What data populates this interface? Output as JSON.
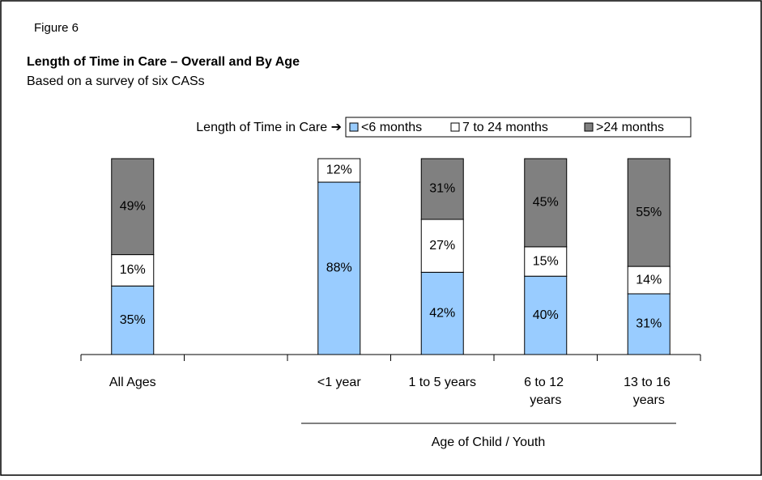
{
  "chart_data": {
    "type": "stacked_bar",
    "figure_label": "Figure 6",
    "title": "Length of Time in Care – Overall and By Age",
    "subtitle": "Based on a survey of six CASs",
    "legend_title": "Length of Time in Care ➔",
    "x_group_label": "Age of Child / Youth",
    "categories": [
      "All Ages",
      null,
      "<1 year",
      "1 to 5 years",
      "6 to 12 years",
      "13 to 16 years"
    ],
    "ylim": [
      0,
      100
    ],
    "series": [
      {
        "name": "<6 months",
        "color": "#99ccff",
        "values": [
          35,
          null,
          88,
          42,
          40,
          31
        ],
        "value_labels": [
          "35%",
          null,
          "88%",
          "42%",
          "40%",
          "31%"
        ]
      },
      {
        "name": "7 to 24 months",
        "color": "#ffffff",
        "values": [
          16,
          null,
          12,
          27,
          15,
          14
        ],
        "value_labels": [
          "16%",
          null,
          "12%",
          "27%",
          "15%",
          "14%"
        ]
      },
      {
        "name": ">24 months",
        "color": "#808080",
        "values": [
          49,
          null,
          null,
          31,
          45,
          55
        ],
        "value_labels": [
          "49%",
          null,
          null,
          "31%",
          "45%",
          "55%"
        ]
      }
    ]
  }
}
